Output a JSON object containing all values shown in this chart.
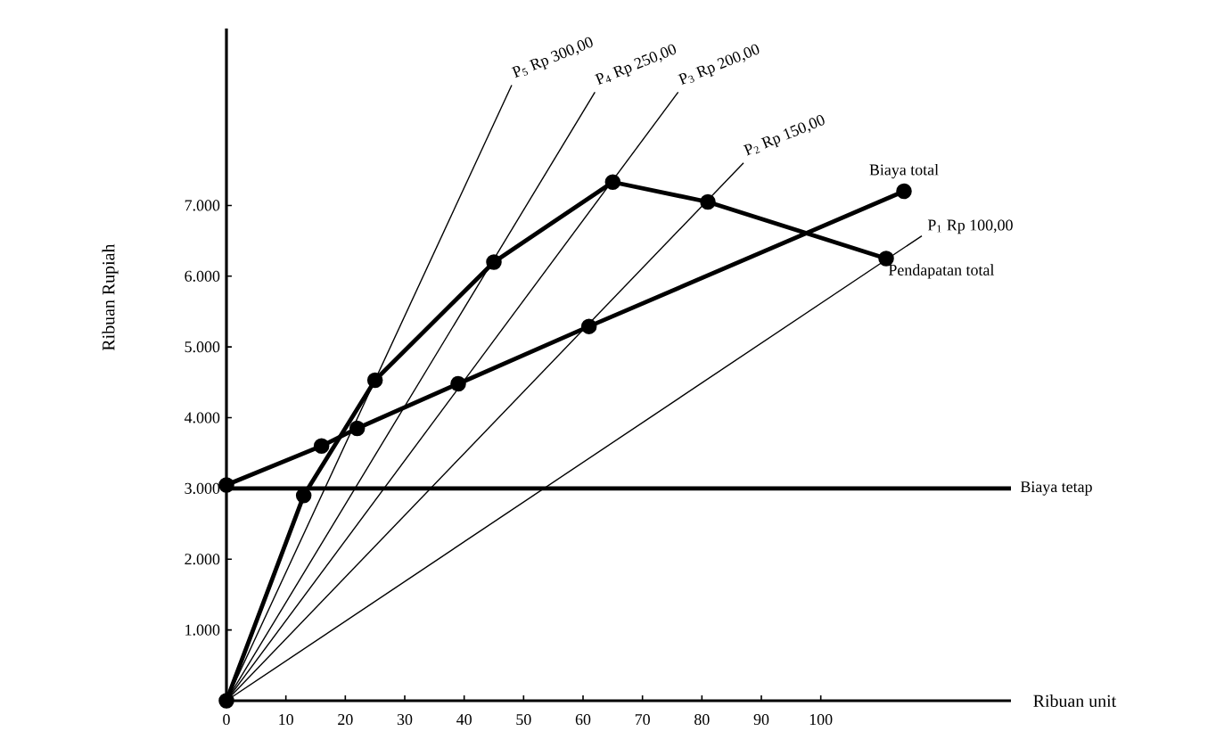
{
  "chart_data": {
    "type": "line",
    "xlabel": "Ribuan unit",
    "ylabel": "Ribuan Rupiah",
    "xlim": [
      0,
      132
    ],
    "ylim": [
      0,
      9500
    ],
    "xticks": [
      0,
      10,
      20,
      30,
      40,
      50,
      60,
      70,
      80,
      90,
      100
    ],
    "yticks": [
      {
        "value": 1000,
        "label": "1.000"
      },
      {
        "value": 2000,
        "label": "2.000"
      },
      {
        "value": 3000,
        "label": "3.000"
      },
      {
        "value": 4000,
        "label": "4.000"
      },
      {
        "value": 5000,
        "label": "5.000"
      },
      {
        "value": 6000,
        "label": "6.000"
      },
      {
        "value": 7000,
        "label": "7.000"
      }
    ],
    "grid": false,
    "legend": false,
    "line_style": "solid",
    "series": [
      {
        "name": "Biaya tetap",
        "color": "#000000",
        "marker": "none",
        "x": [
          0,
          132
        ],
        "values": [
          3000,
          3000
        ]
      },
      {
        "name": "Biaya total",
        "color": "#000000",
        "marker": "circle",
        "x": [
          0,
          16,
          22,
          39,
          61,
          114
        ],
        "values": [
          3050,
          3600,
          3850,
          4480,
          5290,
          7200
        ]
      },
      {
        "name": "Pendapatan total",
        "color": "#000000",
        "marker": "circle",
        "x": [
          0,
          13,
          25,
          45,
          65,
          81,
          111
        ],
        "values": [
          0,
          2900,
          4530,
          6200,
          7330,
          7050,
          6250
        ]
      },
      {
        "name": "P$_{1}$ Rp 100,00",
        "color": "#000000",
        "marker": "none",
        "x": [
          0,
          117
        ],
        "values": [
          0,
          6570
        ]
      },
      {
        "name": "P$_{2}$ Rp 150,00",
        "color": "#000000",
        "marker": "none",
        "x": [
          0,
          87
        ],
        "values": [
          0,
          7600
        ]
      },
      {
        "name": "P$_{3}$ Rp 200,00",
        "color": "#000000",
        "marker": "none",
        "x": [
          0,
          76
        ],
        "values": [
          0,
          8600
        ]
      },
      {
        "name": "P$_{4}$ Rp 250,00",
        "color": "#000000",
        "marker": "none",
        "x": [
          0,
          62
        ],
        "values": [
          0,
          8600
        ]
      },
      {
        "name": "P$_{5}$ Rp 300,00",
        "color": "#000000",
        "marker": "none",
        "x": [
          0,
          48
        ],
        "values": [
          0,
          8700
        ]
      }
    ]
  }
}
